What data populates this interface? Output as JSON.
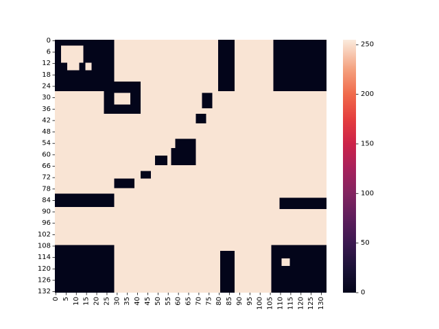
{
  "chart_data": {
    "type": "heatmap",
    "title": "",
    "xlabel": "",
    "ylabel": "",
    "shape": [
      133,
      133
    ],
    "xlim": [
      0,
      133
    ],
    "ylim": [
      0,
      133
    ],
    "x_tick_labels": [
      "0",
      "5",
      "10",
      "15",
      "20",
      "25",
      "30",
      "35",
      "40",
      "45",
      "50",
      "55",
      "60",
      "65",
      "70",
      "75",
      "80",
      "85",
      "90",
      "95",
      "100",
      "105",
      "110",
      "115",
      "120",
      "125",
      "130"
    ],
    "y_tick_labels": [
      "0",
      "6",
      "12",
      "18",
      "24",
      "30",
      "36",
      "42",
      "48",
      "54",
      "60",
      "66",
      "72",
      "78",
      "84",
      "90",
      "96",
      "102",
      "108",
      "114",
      "120",
      "126",
      "132"
    ],
    "colorbar": {
      "colormap": "rocket",
      "min": 0,
      "max": 255,
      "tick_labels": [
        "0",
        "50",
        "100",
        "150",
        "200",
        "250"
      ],
      "stops": [
        {
          "value": 0,
          "color": "#03051a"
        },
        {
          "value": 25,
          "color": "#1b1237"
        },
        {
          "value": 50,
          "color": "#3b1850"
        },
        {
          "value": 75,
          "color": "#5e1e5c"
        },
        {
          "value": 100,
          "color": "#822460"
        },
        {
          "value": 125,
          "color": "#a7215c"
        },
        {
          "value": 150,
          "color": "#cc2349"
        },
        {
          "value": 175,
          "color": "#e43e3e"
        },
        {
          "value": 200,
          "color": "#f06a4b"
        },
        {
          "value": 225,
          "color": "#f4a07e"
        },
        {
          "value": 255,
          "color": "#faebdd"
        }
      ]
    },
    "background_value": 252,
    "background_value_alt": 249,
    "dark_regions_value": 0,
    "dark_regions": [
      {
        "label": "top-left block",
        "rows": [
          0,
          27
        ],
        "cols": [
          0,
          29
        ]
      },
      {
        "label": "top-center vertical bar",
        "rows": [
          0,
          27
        ],
        "cols": [
          80,
          88
        ]
      },
      {
        "label": "top-right block",
        "rows": [
          0,
          27
        ],
        "cols": [
          107,
          133
        ]
      },
      {
        "label": "ring cluster",
        "rows": [
          22,
          39
        ],
        "cols": [
          24,
          42
        ]
      },
      {
        "label": "small square",
        "rows": [
          28,
          36
        ],
        "cols": [
          72,
          77
        ]
      },
      {
        "label": "small square",
        "rows": [
          39,
          44
        ],
        "cols": [
          69,
          74
        ]
      },
      {
        "label": "small bar",
        "rows": [
          52,
          57
        ],
        "cols": [
          59,
          69
        ]
      },
      {
        "label": "cluster",
        "rows": [
          57,
          66
        ],
        "cols": [
          57,
          69
        ]
      },
      {
        "label": "small block",
        "rows": [
          61,
          66
        ],
        "cols": [
          49,
          55
        ]
      },
      {
        "label": "small square",
        "rows": [
          69,
          73
        ],
        "cols": [
          42,
          47
        ]
      },
      {
        "label": "small bar",
        "rows": [
          73,
          78
        ],
        "cols": [
          29,
          39
        ]
      },
      {
        "label": "left band",
        "rows": [
          81,
          88
        ],
        "cols": [
          0,
          29
        ]
      },
      {
        "label": "right band",
        "rows": [
          83,
          89
        ],
        "cols": [
          110,
          133
        ]
      },
      {
        "label": "bottom-left block",
        "rows": [
          108,
          133
        ],
        "cols": [
          0,
          29
        ]
      },
      {
        "label": "bottom-center vertical bar",
        "rows": [
          111,
          133
        ],
        "cols": [
          81,
          88
        ]
      },
      {
        "label": "bottom-right block",
        "rows": [
          108,
          133
        ],
        "cols": [
          106,
          133
        ]
      }
    ],
    "light_holes_value": 252,
    "light_holes": [
      {
        "rows": [
          3,
          12
        ],
        "cols": [
          3,
          14
        ]
      },
      {
        "rows": [
          12,
          16
        ],
        "cols": [
          6,
          12
        ]
      },
      {
        "rows": [
          12,
          16
        ],
        "cols": [
          15,
          18
        ]
      },
      {
        "rows": [
          28,
          34
        ],
        "cols": [
          29,
          37
        ]
      },
      {
        "rows": [
          115,
          119
        ],
        "cols": [
          111,
          115
        ]
      }
    ]
  }
}
